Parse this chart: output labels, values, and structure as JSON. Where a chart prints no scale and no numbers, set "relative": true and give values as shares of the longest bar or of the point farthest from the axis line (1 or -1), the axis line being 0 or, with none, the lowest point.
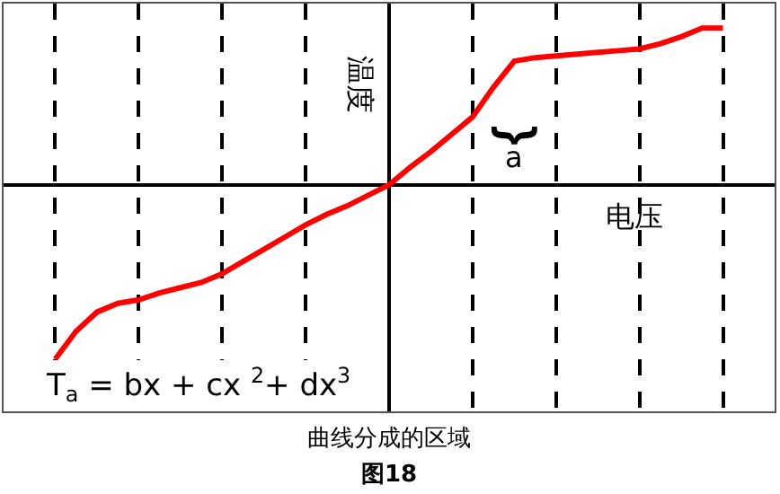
{
  "chart_data": {
    "type": "line",
    "relative": true,
    "xlabel": "电压",
    "ylabel": "温度",
    "annotations": [
      "T$_{a}$ = bx + cx $^{2}$+ dx$^{3}$",
      "曲线分成的区域",
      "图18",
      "⏟",
      "a"
    ],
    "categories": [
      null,
      null,
      null,
      null,
      null,
      null,
      null,
      null,
      null,
      null,
      null,
      null,
      null,
      null,
      null,
      null,
      null,
      null,
      null,
      null,
      null,
      null,
      null,
      null,
      null,
      null,
      null,
      null,
      null,
      null,
      null,
      null,
      null
    ],
    "series": [
      {
        "color": "#ff0000",
        "values": [
          -1.0,
          -0.84,
          -0.73,
          -0.68,
          -0.66,
          -0.62,
          -0.59,
          -0.56,
          -0.51,
          -0.44,
          -0.37,
          -0.3,
          -0.23,
          -0.17,
          -0.12,
          -0.06,
          0,
          0.1,
          0.19,
          0.29,
          0.39,
          0.56,
          0.71,
          0.73,
          0.74,
          0.75,
          0.76,
          0.77,
          0.78,
          0.81,
          0.85,
          0.9,
          0.9
        ]
      }
    ],
    "grid": "x",
    "marker": "none",
    "line_style": "solid"
  }
}
